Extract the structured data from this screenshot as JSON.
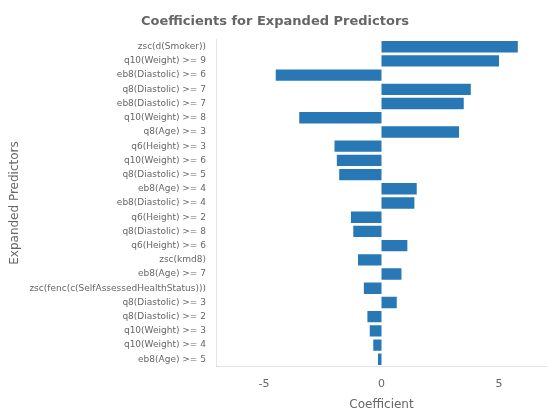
{
  "chart_data": {
    "type": "bar",
    "orientation": "horizontal",
    "title": "Coefficients for Expanded Predictors",
    "xlabel": "Coefficient",
    "ylabel": "Expanded Predictors",
    "categories": [
      "zsc(d(Smoker))",
      "q10(Weight) >= 9",
      "eb8(Diastolic) >= 6",
      "q8(Diastolic) >= 7",
      "eb8(Diastolic) >= 7",
      "q10(Weight) >= 8",
      "q8(Age) >= 3",
      "q6(Height) >= 3",
      "q10(Weight) >= 6",
      "q8(Diastolic) >= 5",
      "eb8(Age) >= 4",
      "eb8(Diastolic) >= 4",
      "q6(Height) >= 2",
      "q8(Diastolic) >= 8",
      "q6(Height) >= 6",
      "zsc(kmd8)",
      "eb8(Age) >= 7",
      "zsc(fenc(c(SelfAssessedHealthStatus)))",
      "q8(Diastolic) >= 3",
      "q8(Diastolic) >= 2",
      "q10(Weight) >= 3",
      "q10(Weight) >= 4",
      "eb8(Age) >= 5"
    ],
    "values": [
      5.8,
      5.0,
      -4.5,
      3.8,
      3.5,
      -3.5,
      3.3,
      -2.0,
      -1.9,
      -1.8,
      1.5,
      1.4,
      -1.3,
      -1.2,
      1.1,
      -1.0,
      0.85,
      -0.75,
      0.65,
      -0.6,
      -0.5,
      -0.35,
      -0.15
    ],
    "color": "#2878b5",
    "xlim": [
      -7,
      7
    ],
    "xticks": [
      -5,
      0,
      5
    ],
    "grid": false
  }
}
